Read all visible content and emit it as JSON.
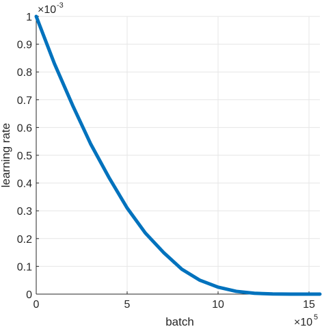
{
  "chart_data": {
    "type": "line",
    "title": "",
    "xlabel": "batch",
    "ylabel": "learning rate",
    "x_multiplier": {
      "base": "×10",
      "exponent": "5"
    },
    "y_multiplier": {
      "base": "×10",
      "exponent": "-3"
    },
    "xlim": [
      0,
      15.6
    ],
    "ylim": [
      0,
      1
    ],
    "x_ticks": [
      0,
      5,
      10,
      15
    ],
    "y_ticks": [
      0,
      0.1,
      0.2,
      0.3,
      0.4,
      0.5,
      0.6,
      0.7,
      0.8,
      0.9,
      1
    ],
    "x_tick_labels": [
      "0",
      "5",
      "10",
      "15"
    ],
    "y_tick_labels": [
      "0",
      "0.1",
      "0.2",
      "0.3",
      "0.4",
      "0.5",
      "0.6",
      "0.7",
      "0.8",
      "0.9",
      "1"
    ],
    "grid": true,
    "series": [
      {
        "color": "#0072BD",
        "x": [
          0,
          1,
          2,
          3,
          4,
          5,
          6,
          7,
          8,
          9,
          10,
          11,
          12,
          13,
          14,
          15,
          15.6
        ],
        "y": [
          1.0,
          0.83,
          0.68,
          0.54,
          0.42,
          0.31,
          0.22,
          0.15,
          0.09,
          0.05,
          0.025,
          0.01,
          0.003,
          0.0005,
          0.0,
          0.0,
          0.0
        ]
      }
    ]
  }
}
